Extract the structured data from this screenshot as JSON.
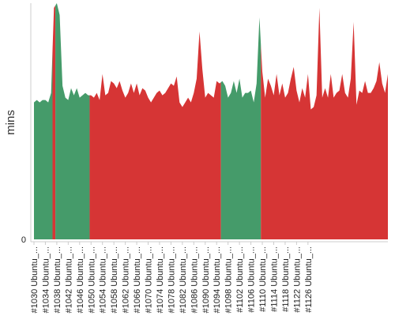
{
  "chart_data": {
    "type": "area",
    "title": "",
    "xlabel": "",
    "ylabel": "mins",
    "y_tick_labels": [
      "0"
    ],
    "ylim": [
      0,
      100
    ],
    "grid": false,
    "legend": "none",
    "colors": {
      "pass": "#459b6a",
      "fail": "#d63535",
      "axis": "#cccccc"
    },
    "series": [
      {
        "values": [
          58,
          59,
          58,
          59,
          59,
          58,
          62,
          98,
          100,
          95,
          65,
          60,
          59,
          64,
          61,
          64,
          60,
          61,
          62,
          61,
          61,
          60,
          62,
          59,
          70,
          61,
          62,
          67,
          66,
          64,
          67,
          63,
          60,
          62,
          66,
          62,
          66,
          61,
          64,
          63,
          60,
          58,
          60,
          62,
          63,
          61,
          62,
          64,
          66,
          65,
          69,
          58,
          56,
          58,
          60,
          58,
          62,
          68,
          88,
          72,
          60,
          62,
          61,
          60,
          67,
          66,
          67,
          65,
          60,
          62,
          67,
          62,
          68,
          60,
          62,
          62,
          63,
          58,
          66,
          94,
          71,
          60,
          68,
          65,
          61,
          70,
          61,
          66,
          60,
          62,
          68,
          73,
          63,
          58,
          64,
          60,
          70,
          55,
          56,
          61,
          98,
          60,
          64,
          60,
          70,
          60,
          62,
          63,
          70,
          62,
          60,
          68,
          92,
          57,
          63,
          62,
          67,
          62,
          62,
          64,
          67,
          75,
          66,
          62,
          70
        ],
        "status": [
          "pass",
          "pass",
          "pass",
          "pass",
          "pass",
          "pass",
          "pass",
          "fail",
          "pass",
          "pass",
          "pass",
          "pass",
          "pass",
          "pass",
          "pass",
          "pass",
          "pass",
          "pass",
          "pass",
          "pass",
          "fail",
          "fail",
          "fail",
          "fail",
          "fail",
          "fail",
          "fail",
          "fail",
          "fail",
          "fail",
          "fail",
          "fail",
          "fail",
          "fail",
          "fail",
          "fail",
          "fail",
          "fail",
          "fail",
          "fail",
          "fail",
          "fail",
          "fail",
          "fail",
          "fail",
          "fail",
          "fail",
          "fail",
          "fail",
          "fail",
          "fail",
          "fail",
          "fail",
          "fail",
          "fail",
          "fail",
          "fail",
          "fail",
          "fail",
          "fail",
          "fail",
          "fail",
          "fail",
          "fail",
          "fail",
          "fail",
          "pass",
          "pass",
          "pass",
          "pass",
          "pass",
          "pass",
          "pass",
          "pass",
          "pass",
          "pass",
          "pass",
          "pass",
          "pass",
          "pass",
          "fail",
          "fail",
          "fail",
          "fail",
          "fail",
          "fail",
          "fail",
          "fail",
          "fail",
          "fail",
          "fail",
          "fail",
          "fail",
          "fail",
          "fail",
          "fail",
          "fail",
          "fail",
          "fail",
          "fail",
          "fail",
          "fail",
          "fail",
          "fail",
          "fail",
          "fail",
          "fail",
          "fail",
          "fail",
          "fail",
          "fail",
          "fail",
          "fail",
          "fail",
          "fail",
          "fail",
          "fail",
          "fail",
          "fail",
          "fail",
          "fail",
          "fail",
          "fail",
          "fail",
          "fail"
        ]
      }
    ],
    "x_tick_labels": [
      "#1030 Ubuntu_...",
      "#1034 Ubuntu_...",
      "#1038 Ubuntu_...",
      "#1042 Ubuntu_...",
      "#1046 Ubuntu_...",
      "#1050 Ubuntu_...",
      "#1054 Ubuntu_...",
      "#1058 Ubuntu_...",
      "#1062 Ubuntu_...",
      "#1066 Ubuntu_...",
      "#1070 Ubuntu_...",
      "#1074 Ubuntu_...",
      "#1078 Ubuntu_...",
      "#1082 Ubuntu_...",
      "#1086 Ubuntu_...",
      "#1090 Ubuntu_...",
      "#1094 Ubuntu_...",
      "#1098 Ubuntu_...",
      "#1102 Ubuntu_...",
      "#1106 Ubuntu_...",
      "#1110 Ubuntu_...",
      "#1114 Ubuntu_...",
      "#1118 Ubuntu_...",
      "#1122 Ubuntu_...",
      "#1126 Ubuntu_..."
    ]
  }
}
